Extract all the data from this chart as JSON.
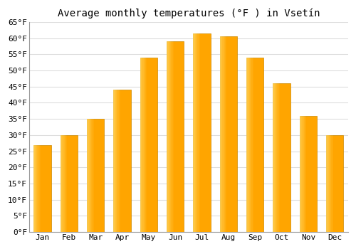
{
  "title": "Average monthly temperatures (°F ) in Vsetín",
  "months": [
    "Jan",
    "Feb",
    "Mar",
    "Apr",
    "May",
    "Jun",
    "Jul",
    "Aug",
    "Sep",
    "Oct",
    "Nov",
    "Dec"
  ],
  "values": [
    27.0,
    30.0,
    35.0,
    44.0,
    54.0,
    59.0,
    61.5,
    60.5,
    54.0,
    46.0,
    36.0,
    30.0
  ],
  "bar_color_main": "#FFA500",
  "bar_color_light": "#FFD966",
  "bar_edge_color": "#CC8800",
  "ylim": [
    0,
    65
  ],
  "yticks": [
    0,
    5,
    10,
    15,
    20,
    25,
    30,
    35,
    40,
    45,
    50,
    55,
    60,
    65
  ],
  "ytick_labels": [
    "0°F",
    "5°F",
    "10°F",
    "15°F",
    "20°F",
    "25°F",
    "30°F",
    "35°F",
    "40°F",
    "45°F",
    "50°F",
    "55°F",
    "60°F",
    "65°F"
  ],
  "background_color": "#ffffff",
  "plot_bg_color": "#ffffff",
  "grid_color": "#dddddd",
  "title_fontsize": 10,
  "tick_fontsize": 8,
  "figsize": [
    5.0,
    3.5
  ],
  "dpi": 100,
  "bar_width": 0.65
}
